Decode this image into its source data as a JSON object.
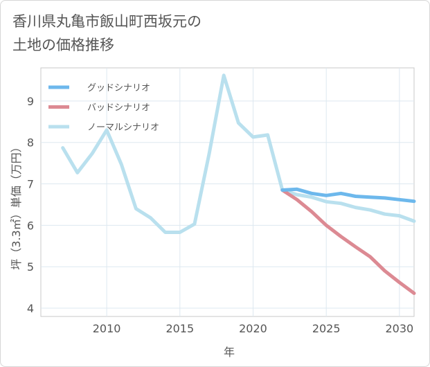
{
  "title_line1": "香川県丸亀市飯山町西坂元の",
  "title_line2": "土地の価格推移",
  "chart_data": {
    "type": "line",
    "title": "香川県丸亀市飯山町西坂元の土地の価格推移",
    "xlabel": "年",
    "ylabel": "坪（3.3㎡）単価（万円）",
    "xlim": [
      2005.5,
      2031
    ],
    "ylim": [
      3.8,
      9.8
    ],
    "x_ticks": [
      2010,
      2015,
      2020,
      2025,
      2030
    ],
    "y_ticks": [
      4,
      5,
      6,
      7,
      8,
      9
    ],
    "legend_position": "top-left",
    "series": [
      {
        "name": "グッドシナリオ",
        "color": "#6db8ec",
        "x": [
          2022,
          2023,
          2024,
          2025,
          2026,
          2027,
          2028,
          2029,
          2030,
          2031
        ],
        "values": [
          6.85,
          6.87,
          6.77,
          6.72,
          6.77,
          6.7,
          6.68,
          6.66,
          6.62,
          6.58
        ]
      },
      {
        "name": "バッドシナリオ",
        "color": "#dc8a93",
        "x": [
          2022,
          2023,
          2024,
          2025,
          2026,
          2027,
          2028,
          2029,
          2030,
          2031
        ],
        "values": [
          6.85,
          6.62,
          6.33,
          6.0,
          5.73,
          5.48,
          5.24,
          4.9,
          4.62,
          4.36
        ]
      },
      {
        "name": "ノーマルシナリオ",
        "color": "#b9e0ee",
        "x": [
          2007,
          2008,
          2009,
          2010,
          2011,
          2012,
          2013,
          2014,
          2015,
          2016,
          2017,
          2018,
          2019,
          2020,
          2021,
          2022,
          2023,
          2024,
          2025,
          2026,
          2027,
          2028,
          2029,
          2030,
          2031
        ],
        "values": [
          7.87,
          7.27,
          7.73,
          8.3,
          7.47,
          6.4,
          6.18,
          5.83,
          5.83,
          6.03,
          7.73,
          9.62,
          8.47,
          8.13,
          8.18,
          6.85,
          6.74,
          6.68,
          6.57,
          6.53,
          6.43,
          6.37,
          6.27,
          6.23,
          6.1
        ]
      }
    ]
  }
}
